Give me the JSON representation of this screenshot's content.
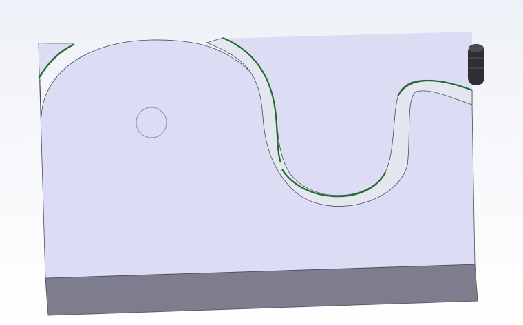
{
  "viewport": {
    "background_top": "#eef1f7",
    "background_bottom": "#ffffff"
  },
  "model": {
    "plate_face_color": "#dcdcf5",
    "plate_side_color": "#7e7d8e",
    "slot_fill_color": "#e4e6f0",
    "slot_edge_color": "#1f6b2b",
    "hole_color": "#8f8fa3",
    "pin_color": "#2e2e33",
    "parts": [
      "base-plate",
      "cam-slot",
      "through-hole",
      "guide-pin"
    ]
  }
}
